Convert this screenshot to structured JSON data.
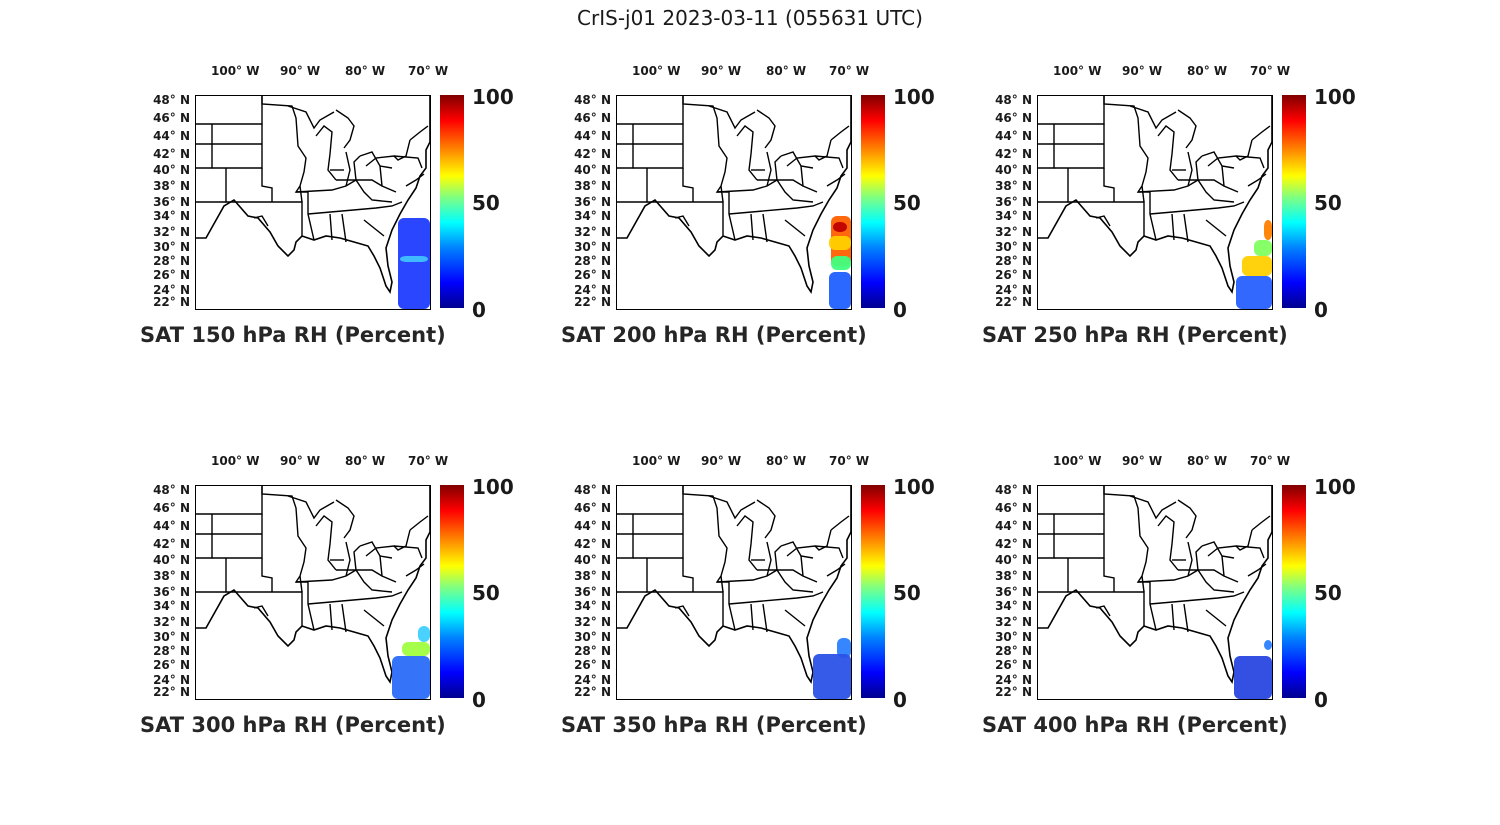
{
  "figure": {
    "title": "CrIS-j01 2023-03-11 (055631 UTC)"
  },
  "axes": {
    "lon_ticks": [
      "100° W",
      "90° W",
      "80° W",
      "70° W"
    ],
    "lat_ticks": [
      "48° N",
      "46° N",
      "44° N",
      "42° N",
      "40° N",
      "38° N",
      "36° N",
      "34° N",
      "32° N",
      "30° N",
      "28° N",
      "26° N",
      "24° N",
      "22° N"
    ]
  },
  "colorbar": {
    "max": "100",
    "mid": "50",
    "min": "0",
    "colormap": "jet"
  },
  "panels": [
    {
      "caption": "SAT 150 hPa RH (Percent)",
      "pressure_hpa": 150
    },
    {
      "caption": "SAT 200 hPa RH (Percent)",
      "pressure_hpa": 200
    },
    {
      "caption": "SAT 250 hPa RH (Percent)",
      "pressure_hpa": 250
    },
    {
      "caption": "SAT 300 hPa RH (Percent)",
      "pressure_hpa": 300
    },
    {
      "caption": "SAT 350 hPa RH (Percent)",
      "pressure_hpa": 350
    },
    {
      "caption": "SAT 400 hPa RH (Percent)",
      "pressure_hpa": 400
    }
  ],
  "colors": {
    "outline": "#000000",
    "low_rh": "#1a3fe0",
    "high_rh": "#c00000"
  }
}
